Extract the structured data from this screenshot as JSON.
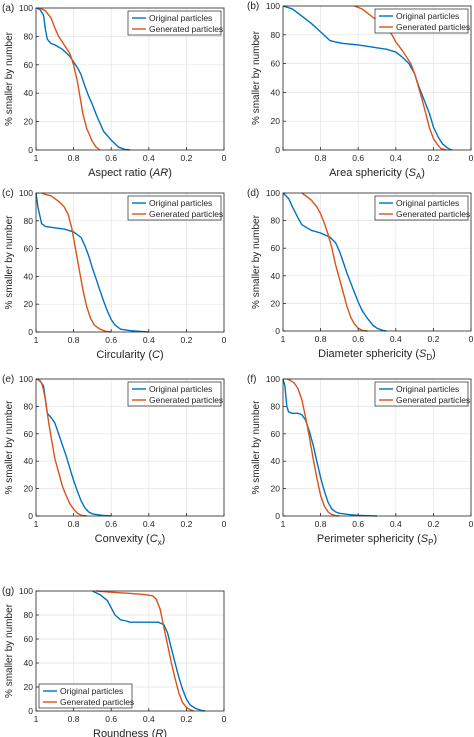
{
  "figure": {
    "ylabel": "% smaller by number",
    "colors": {
      "original": "#0072BD",
      "generated": "#D95319",
      "grid": "#e3e3e3",
      "axis": "#262626"
    }
  },
  "chart_data": [
    {
      "type": "line",
      "panel": "(a)",
      "xlabel_parts": [
        {
          "t": "Aspect ratio ("
        },
        {
          "t": "AR",
          "style": "italic"
        },
        {
          "t": ")"
        }
      ],
      "xlim": [
        1,
        0
      ],
      "ylim": [
        0,
        100
      ],
      "x_reversed": true,
      "grid": true,
      "legend": "top-right",
      "xticks": [
        1,
        0.8,
        0.6,
        0.4,
        0.2,
        0
      ],
      "xtick_labels": [
        "1",
        "0.8",
        "0.6",
        "0.4",
        "0.2",
        "0"
      ],
      "yticks": [
        0,
        20,
        40,
        60,
        80,
        100
      ],
      "ytick_labels": [
        "0",
        "20",
        "40",
        "60",
        "80",
        "100"
      ],
      "series": [
        {
          "name": "Original particles",
          "color": "#0072BD",
          "x": [
            1.0,
            0.98,
            0.96,
            0.95,
            0.94,
            0.92,
            0.9,
            0.86,
            0.82,
            0.8,
            0.78,
            0.76,
            0.74,
            0.72,
            0.7,
            0.68,
            0.66,
            0.64,
            0.6,
            0.56,
            0.53,
            0.5
          ],
          "y": [
            100,
            99,
            95,
            85,
            78,
            75,
            74,
            71,
            66,
            62,
            58,
            53,
            45,
            38,
            32,
            25,
            19,
            13,
            7,
            2,
            0.5,
            0
          ]
        },
        {
          "name": "Generated particles",
          "color": "#D95319",
          "x": [
            0.98,
            0.95,
            0.92,
            0.9,
            0.88,
            0.85,
            0.82,
            0.8,
            0.78,
            0.76,
            0.75,
            0.73,
            0.7,
            0.68,
            0.66
          ],
          "y": [
            100,
            98,
            93,
            86,
            80,
            74,
            68,
            60,
            48,
            33,
            25,
            15,
            6,
            2,
            0
          ]
        }
      ]
    },
    {
      "type": "line",
      "panel": "(b)",
      "xlabel_parts": [
        {
          "t": "Area sphericity ("
        },
        {
          "t": "S",
          "style": "italic"
        },
        {
          "t": "A",
          "style": "sub"
        },
        {
          "t": ")"
        }
      ],
      "xlim": [
        1,
        0
      ],
      "ylim": [
        0,
        100
      ],
      "x_reversed": true,
      "grid": true,
      "legend": "top-right",
      "xticks": [
        1,
        0.8,
        0.6,
        0.4,
        0.2,
        0
      ],
      "xtick_labels": [
        "",
        "0.8",
        "0.6",
        "0.4",
        "0.2",
        "0"
      ],
      "yticks": [
        0,
        20,
        40,
        60,
        80,
        100
      ],
      "ytick_labels": [
        "0",
        "20",
        "40",
        "60",
        "80",
        "100"
      ],
      "series": [
        {
          "name": "Original particles",
          "color": "#0072BD",
          "x": [
            1.0,
            0.95,
            0.9,
            0.85,
            0.8,
            0.75,
            0.72,
            0.68,
            0.6,
            0.5,
            0.45,
            0.4,
            0.37,
            0.33,
            0.3,
            0.28,
            0.25,
            0.22,
            0.2,
            0.17,
            0.15,
            0.12,
            0.1
          ],
          "y": [
            100,
            98,
            93,
            88,
            82,
            76,
            75,
            74,
            73,
            71,
            70,
            68,
            65,
            60,
            53,
            45,
            35,
            25,
            16,
            8,
            4,
            1,
            0
          ]
        },
        {
          "name": "Generated particles",
          "color": "#D95319",
          "x": [
            0.62,
            0.58,
            0.55,
            0.52,
            0.5,
            0.47,
            0.45,
            0.42,
            0.4,
            0.37,
            0.35,
            0.32,
            0.3,
            0.28,
            0.26,
            0.24,
            0.22,
            0.2,
            0.18,
            0.16,
            0.13
          ],
          "y": [
            100,
            98,
            95,
            92,
            90,
            88,
            85,
            80,
            75,
            70,
            66,
            60,
            53,
            44,
            35,
            25,
            15,
            8,
            4,
            1,
            0
          ]
        }
      ]
    },
    {
      "type": "line",
      "panel": "(c)",
      "xlabel_parts": [
        {
          "t": "Circularity ("
        },
        {
          "t": "C",
          "style": "italic"
        },
        {
          "t": ")"
        }
      ],
      "xlim": [
        1,
        0
      ],
      "ylim": [
        0,
        100
      ],
      "x_reversed": true,
      "grid": true,
      "legend": "top-right",
      "xticks": [
        1,
        0.8,
        0.6,
        0.4,
        0.2,
        0
      ],
      "xtick_labels": [
        "1",
        "0.8",
        "0.6",
        "0.4",
        "0.2",
        "0"
      ],
      "yticks": [
        0,
        20,
        40,
        60,
        80,
        100
      ],
      "ytick_labels": [
        "0",
        "20",
        "40",
        "60",
        "80",
        "100"
      ],
      "series": [
        {
          "name": "Original particles",
          "color": "#0072BD",
          "x": [
            1.0,
            0.99,
            0.97,
            0.95,
            0.9,
            0.85,
            0.8,
            0.76,
            0.74,
            0.72,
            0.7,
            0.68,
            0.66,
            0.64,
            0.62,
            0.6,
            0.58,
            0.55,
            0.5,
            0.45,
            0.4
          ],
          "y": [
            100,
            90,
            78,
            76,
            75,
            74,
            72,
            68,
            62,
            55,
            46,
            38,
            30,
            22,
            15,
            9,
            5,
            2,
            1,
            0.5,
            0
          ]
        },
        {
          "name": "Generated particles",
          "color": "#D95319",
          "x": [
            0.97,
            0.95,
            0.92,
            0.9,
            0.88,
            0.85,
            0.83,
            0.81,
            0.79,
            0.77,
            0.75,
            0.73,
            0.71,
            0.69,
            0.66,
            0.63,
            0.6
          ],
          "y": [
            100,
            99,
            98,
            96,
            94,
            90,
            85,
            75,
            60,
            45,
            30,
            18,
            10,
            5,
            2,
            0.5,
            0
          ]
        }
      ]
    },
    {
      "type": "line",
      "panel": "(d)",
      "xlabel_parts": [
        {
          "t": "Diameter sphericity ("
        },
        {
          "t": "S",
          "style": "italic"
        },
        {
          "t": "D",
          "style": "sub"
        },
        {
          "t": ")"
        }
      ],
      "xlim": [
        1,
        0
      ],
      "ylim": [
        0,
        100
      ],
      "x_reversed": true,
      "grid": true,
      "legend": "top-right",
      "xticks": [
        1,
        0.8,
        0.6,
        0.4,
        0.2,
        0
      ],
      "xtick_labels": [
        "1",
        "0.8",
        "0.6",
        "0.4",
        "0.2",
        "0"
      ],
      "yticks": [
        0,
        20,
        40,
        60,
        80,
        100
      ],
      "ytick_labels": [
        "0",
        "20",
        "40",
        "60",
        "80",
        "100"
      ],
      "series": [
        {
          "name": "Original particles",
          "color": "#0072BD",
          "x": [
            1.0,
            0.97,
            0.95,
            0.92,
            0.9,
            0.85,
            0.8,
            0.75,
            0.72,
            0.7,
            0.68,
            0.66,
            0.64,
            0.62,
            0.6,
            0.58,
            0.55,
            0.52,
            0.5,
            0.47,
            0.45
          ],
          "y": [
            100,
            96,
            90,
            82,
            77,
            73,
            71,
            68,
            64,
            58,
            50,
            42,
            35,
            28,
            21,
            15,
            9,
            4,
            2,
            0.5,
            0
          ]
        },
        {
          "name": "Generated particles",
          "color": "#D95319",
          "x": [
            0.9,
            0.87,
            0.85,
            0.82,
            0.8,
            0.78,
            0.76,
            0.74,
            0.72,
            0.7,
            0.68,
            0.66,
            0.64,
            0.62,
            0.6,
            0.58,
            0.55
          ],
          "y": [
            100,
            97,
            95,
            90,
            85,
            78,
            70,
            60,
            48,
            38,
            28,
            18,
            10,
            5,
            2,
            0.5,
            0
          ]
        }
      ]
    },
    {
      "type": "line",
      "panel": "(e)",
      "xlabel_parts": [
        {
          "t": "Convexity ("
        },
        {
          "t": "C",
          "style": "italic"
        },
        {
          "t": "x",
          "style": "sub"
        },
        {
          "t": ")"
        }
      ],
      "xlim": [
        1,
        0
      ],
      "ylim": [
        0,
        100
      ],
      "x_reversed": true,
      "grid": true,
      "legend": "top-right",
      "xticks": [
        1,
        0.8,
        0.6,
        0.4,
        0.2,
        0
      ],
      "xtick_labels": [
        "1",
        "0.8",
        "0.6",
        "0.4",
        "0.2",
        "0"
      ],
      "yticks": [
        0,
        20,
        40,
        60,
        80,
        100
      ],
      "ytick_labels": [
        "0",
        "20",
        "40",
        "60",
        "80",
        "100"
      ],
      "series": [
        {
          "name": "Original particles",
          "color": "#0072BD",
          "x": [
            1.0,
            0.98,
            0.96,
            0.95,
            0.94,
            0.92,
            0.9,
            0.88,
            0.86,
            0.84,
            0.82,
            0.8,
            0.78,
            0.76,
            0.74,
            0.72,
            0.7,
            0.65,
            0.6
          ],
          "y": [
            100,
            99,
            95,
            85,
            75,
            72,
            68,
            60,
            52,
            44,
            35,
            26,
            18,
            11,
            6,
            3,
            1.5,
            0.5,
            0
          ]
        },
        {
          "name": "Generated particles",
          "color": "#D95319",
          "x": [
            0.99,
            0.97,
            0.96,
            0.95,
            0.94,
            0.93,
            0.92,
            0.91,
            0.9,
            0.88,
            0.86,
            0.84,
            0.82,
            0.8,
            0.78,
            0.76,
            0.73
          ],
          "y": [
            100,
            97,
            92,
            85,
            75,
            66,
            58,
            50,
            42,
            32,
            22,
            15,
            9,
            5,
            2,
            0.5,
            0
          ]
        }
      ]
    },
    {
      "type": "line",
      "panel": "(f)",
      "xlabel_parts": [
        {
          "t": "Perimeter sphericity ("
        },
        {
          "t": "S",
          "style": "italic"
        },
        {
          "t": "P",
          "style": "sub"
        },
        {
          "t": ")"
        }
      ],
      "xlim": [
        1,
        0
      ],
      "ylim": [
        0,
        100
      ],
      "x_reversed": true,
      "grid": true,
      "legend": "top-right",
      "xticks": [
        1,
        0.8,
        0.6,
        0.4,
        0.2,
        0
      ],
      "xtick_labels": [
        "1",
        "0.8",
        "0.6",
        "0.4",
        "0.2",
        "0"
      ],
      "yticks": [
        0,
        20,
        40,
        60,
        80,
        100
      ],
      "ytick_labels": [
        "0",
        "20",
        "40",
        "60",
        "80",
        "100"
      ],
      "series": [
        {
          "name": "Original particles",
          "color": "#0072BD",
          "x": [
            1.0,
            0.99,
            0.98,
            0.97,
            0.95,
            0.92,
            0.9,
            0.88,
            0.86,
            0.84,
            0.82,
            0.8,
            0.78,
            0.76,
            0.74,
            0.72,
            0.7,
            0.65,
            0.6,
            0.55,
            0.5
          ],
          "y": [
            100,
            95,
            80,
            76,
            75,
            75,
            74,
            70,
            62,
            52,
            40,
            28,
            18,
            10,
            5,
            3,
            2,
            1,
            0.5,
            0.2,
            0
          ]
        },
        {
          "name": "Generated particles",
          "color": "#D95319",
          "x": [
            0.98,
            0.96,
            0.94,
            0.92,
            0.9,
            0.88,
            0.86,
            0.84,
            0.82,
            0.8,
            0.78,
            0.76,
            0.74,
            0.72,
            0.7
          ],
          "y": [
            100,
            99,
            97,
            93,
            85,
            72,
            58,
            42,
            28,
            15,
            7,
            3,
            1,
            0.3,
            0
          ]
        }
      ]
    },
    {
      "type": "line",
      "panel": "(g)",
      "xlabel_parts": [
        {
          "t": "Roundness ("
        },
        {
          "t": "R",
          "style": "italic"
        },
        {
          "t": ")"
        }
      ],
      "xlim": [
        1,
        0
      ],
      "ylim": [
        0,
        100
      ],
      "x_reversed": true,
      "grid": true,
      "legend": "bottom-left",
      "xticks": [
        1,
        0.8,
        0.6,
        0.4,
        0.2,
        0
      ],
      "xtick_labels": [
        "1",
        "0.8",
        "0.6",
        "0.4",
        "0.2",
        "0"
      ],
      "yticks": [
        0,
        20,
        40,
        60,
        80,
        100
      ],
      "ytick_labels": [
        "0",
        "20",
        "40",
        "60",
        "80",
        "100"
      ],
      "series": [
        {
          "name": "Original particles",
          "color": "#0072BD",
          "x": [
            0.7,
            0.66,
            0.62,
            0.6,
            0.58,
            0.55,
            0.52,
            0.5,
            0.45,
            0.4,
            0.35,
            0.32,
            0.3,
            0.28,
            0.26,
            0.24,
            0.22,
            0.2,
            0.18,
            0.15,
            0.12,
            0.1
          ],
          "y": [
            100,
            97,
            92,
            86,
            80,
            76,
            75,
            74,
            74,
            74,
            74,
            72,
            65,
            52,
            40,
            28,
            18,
            10,
            5,
            2,
            0.5,
            0
          ]
        },
        {
          "name": "Generated particles",
          "color": "#D95319",
          "x": [
            0.68,
            0.6,
            0.5,
            0.42,
            0.38,
            0.36,
            0.34,
            0.32,
            0.3,
            0.28,
            0.26,
            0.24,
            0.22,
            0.2,
            0.18,
            0.16
          ],
          "y": [
            100,
            99,
            98,
            97,
            96,
            93,
            85,
            70,
            55,
            40,
            27,
            15,
            7,
            3,
            1,
            0
          ]
        }
      ]
    }
  ]
}
